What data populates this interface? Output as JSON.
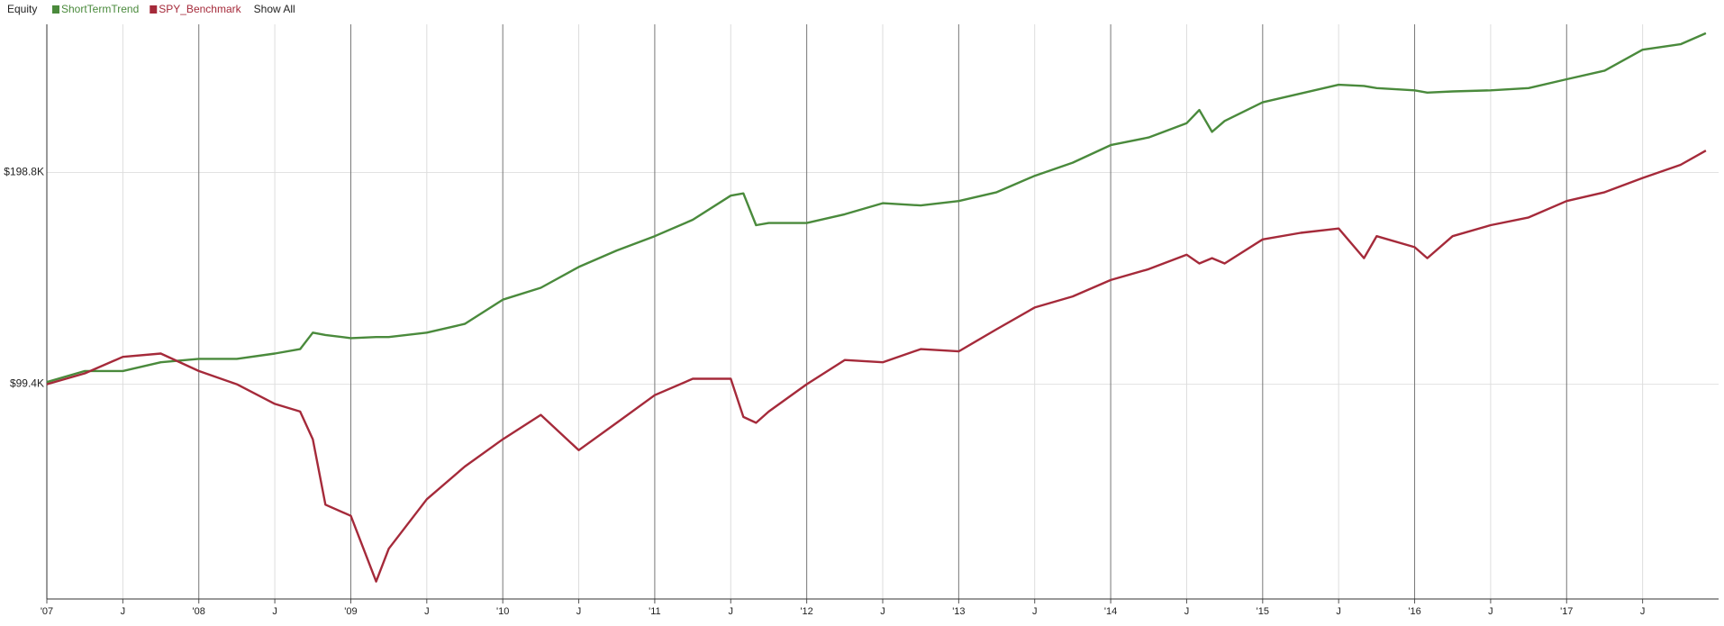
{
  "chart_data": {
    "type": "line",
    "title": "Equity",
    "show_all": "Show All",
    "log_scale": true,
    "grid": true,
    "x": [
      "2007-01",
      "2007-04",
      "2007-07",
      "2007-10",
      "2008-01",
      "2008-04",
      "2008-07",
      "2008-09",
      "2008-10",
      "2008-11",
      "2009-01",
      "2009-03",
      "2009-04",
      "2009-07",
      "2009-10",
      "2010-01",
      "2010-04",
      "2010-07",
      "2010-10",
      "2011-01",
      "2011-04",
      "2011-07",
      "2011-08",
      "2011-09",
      "2011-10",
      "2012-01",
      "2012-04",
      "2012-07",
      "2012-10",
      "2013-01",
      "2013-04",
      "2013-07",
      "2013-10",
      "2014-01",
      "2014-04",
      "2014-07",
      "2014-08",
      "2014-09",
      "2014-10",
      "2015-01",
      "2015-04",
      "2015-07",
      "2015-09",
      "2015-10",
      "2016-01",
      "2016-02",
      "2016-04",
      "2016-07",
      "2016-10",
      "2017-01",
      "2017-04",
      "2017-07",
      "2017-10",
      "2017-12"
    ],
    "series": [
      {
        "name": "ShortTermTrend",
        "color": "#4a8a3c",
        "values": [
          100100,
          103800,
          103800,
          106800,
          108000,
          108000,
          109900,
          111500,
          117700,
          116800,
          115600,
          116000,
          116000,
          117700,
          121100,
          131100,
          136300,
          145900,
          154000,
          161400,
          170300,
          184300,
          185700,
          167300,
          168500,
          168500,
          173400,
          179800,
          178500,
          181100,
          186400,
          196700,
          205300,
          217500,
          223000,
          233700,
          244000,
          227100,
          235400,
          250200,
          257500,
          265000,
          264000,
          262100,
          260200,
          258300,
          259300,
          260200,
          262100,
          269800,
          277600,
          297200,
          302600,
          313700
        ]
      },
      {
        "name": "SPY_Benchmark",
        "color": "#a52a3a",
        "values": [
          99400,
          103000,
          108700,
          109900,
          103800,
          99400,
          93200,
          90900,
          83000,
          67000,
          64600,
          52100,
          58000,
          68200,
          75900,
          83000,
          89900,
          80100,
          87600,
          95900,
          101200,
          101200,
          89300,
          87600,
          90900,
          99400,
          107600,
          106800,
          111500,
          110700,
          119000,
          127800,
          132500,
          139800,
          144900,
          151900,
          147600,
          150200,
          147600,
          159700,
          163200,
          165500,
          150200,
          161400,
          155700,
          150200,
          161400,
          167300,
          171600,
          181100,
          186400,
          195300,
          203900,
          213600
        ]
      }
    ],
    "xlim": [
      "2007-01",
      "2018-01"
    ],
    "xticks": [
      {
        "value": "2007-01",
        "label": "'07"
      },
      {
        "value": "2007-07",
        "label": "J"
      },
      {
        "value": "2008-01",
        "label": "'08"
      },
      {
        "value": "2008-07",
        "label": "J"
      },
      {
        "value": "2009-01",
        "label": "'09"
      },
      {
        "value": "2009-07",
        "label": "J"
      },
      {
        "value": "2010-01",
        "label": "'10"
      },
      {
        "value": "2010-07",
        "label": "J"
      },
      {
        "value": "2011-01",
        "label": "'11"
      },
      {
        "value": "2011-07",
        "label": "J"
      },
      {
        "value": "2012-01",
        "label": "'12"
      },
      {
        "value": "2012-07",
        "label": "J"
      },
      {
        "value": "2013-01",
        "label": "'13"
      },
      {
        "value": "2013-07",
        "label": "J"
      },
      {
        "value": "2014-01",
        "label": "'14"
      },
      {
        "value": "2014-07",
        "label": "J"
      },
      {
        "value": "2015-01",
        "label": "'15"
      },
      {
        "value": "2015-07",
        "label": "J"
      },
      {
        "value": "2016-01",
        "label": "'16"
      },
      {
        "value": "2016-07",
        "label": "J"
      },
      {
        "value": "2017-01",
        "label": "'17"
      },
      {
        "value": "2017-07",
        "label": "J"
      }
    ],
    "ylim": [
      49200,
      323000
    ],
    "yticks": [
      {
        "value": 99400,
        "label": "$99.4K"
      },
      {
        "value": 198800,
        "label": "$198.8K"
      }
    ]
  }
}
